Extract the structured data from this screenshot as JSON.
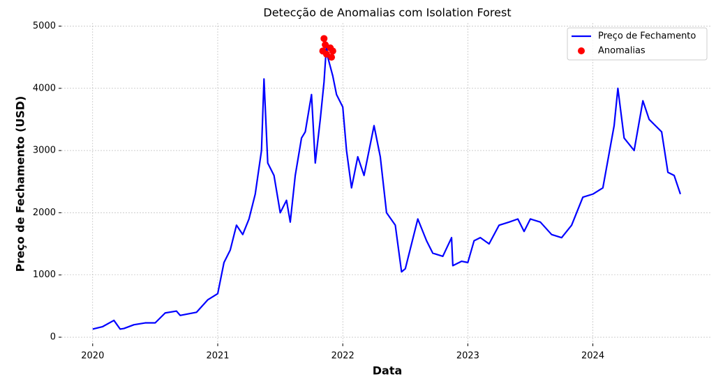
{
  "chart_data": {
    "type": "line",
    "title": "Detecção de Anomalias com Isolation Forest",
    "xlabel": "Data",
    "ylabel": "Preço de Fechamento (USD)",
    "xlim": [
      2019.75,
      2024.94
    ],
    "ylim": [
      -100,
      5050
    ],
    "xticks": [
      2020,
      2021,
      2022,
      2023,
      2024
    ],
    "yticks": [
      0,
      1000,
      2000,
      3000,
      4000,
      5000
    ],
    "grid": true,
    "legend": "upper right",
    "series": [
      {
        "name": "Preço de Fechamento",
        "type": "line",
        "color": "#0000ff",
        "x": [
          2020.0,
          2020.08,
          2020.17,
          2020.22,
          2020.25,
          2020.33,
          2020.42,
          2020.5,
          2020.58,
          2020.67,
          2020.7,
          2020.75,
          2020.83,
          2020.92,
          2021.0,
          2021.05,
          2021.1,
          2021.15,
          2021.2,
          2021.25,
          2021.3,
          2021.35,
          2021.37,
          2021.4,
          2021.45,
          2021.5,
          2021.55,
          2021.58,
          2021.62,
          2021.67,
          2021.7,
          2021.75,
          2021.78,
          2021.82,
          2021.85,
          2021.87,
          2021.88,
          2021.92,
          2021.95,
          2022.0,
          2022.03,
          2022.07,
          2022.12,
          2022.17,
          2022.25,
          2022.3,
          2022.35,
          2022.42,
          2022.47,
          2022.5,
          2022.55,
          2022.6,
          2022.67,
          2022.72,
          2022.8,
          2022.87,
          2022.88,
          2022.95,
          2023.0,
          2023.05,
          2023.1,
          2023.17,
          2023.25,
          2023.33,
          2023.4,
          2023.45,
          2023.5,
          2023.58,
          2023.67,
          2023.75,
          2023.83,
          2023.92,
          2024.0,
          2024.08,
          2024.17,
          2024.2,
          2024.25,
          2024.33,
          2024.4,
          2024.45,
          2024.5,
          2024.55,
          2024.6,
          2024.65,
          2024.7
        ],
        "values": [
          130,
          170,
          270,
          130,
          140,
          200,
          230,
          230,
          390,
          420,
          350,
          370,
          400,
          600,
          700,
          1200,
          1400,
          1800,
          1650,
          1900,
          2300,
          3000,
          4150,
          2800,
          2600,
          2000,
          2200,
          1850,
          2600,
          3200,
          3300,
          3900,
          2800,
          3500,
          4100,
          4700,
          4500,
          4200,
          3900,
          3700,
          3000,
          2400,
          2900,
          2600,
          3400,
          2900,
          2000,
          1800,
          1050,
          1100,
          1500,
          1900,
          1550,
          1350,
          1300,
          1600,
          1150,
          1220,
          1200,
          1550,
          1600,
          1500,
          1800,
          1850,
          1900,
          1700,
          1900,
          1850,
          1650,
          1600,
          1800,
          2250,
          2300,
          2400,
          3400,
          4000,
          3200,
          3000,
          3800,
          3500,
          3400,
          3300,
          2650,
          2600,
          2300
        ]
      },
      {
        "name": "Anomalias",
        "type": "scatter",
        "color": "#ff0000",
        "x": [
          2021.84,
          2021.85,
          2021.86,
          2021.87,
          2021.9,
          2021.91,
          2021.92
        ],
        "values": [
          4600,
          4800,
          4700,
          4550,
          4650,
          4500,
          4600
        ]
      }
    ]
  }
}
